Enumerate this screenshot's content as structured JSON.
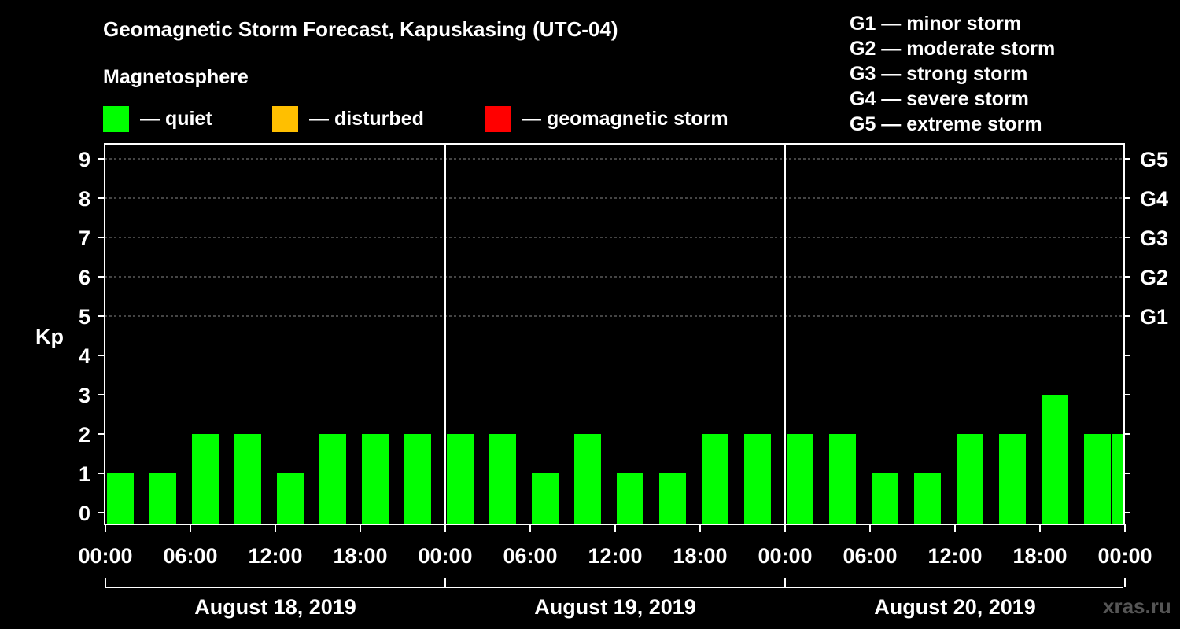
{
  "title": "Geomagnetic Storm Forecast, Kapuskasing (UTC-04)",
  "legend": {
    "heading": "Magnetosphere",
    "items": [
      {
        "label": "— quiet",
        "color": "#00ff00"
      },
      {
        "label": "— disturbed",
        "color": "#ffbf00"
      },
      {
        "label": "— geomagnetic storm",
        "color": "#ff0000"
      }
    ]
  },
  "g_scale": [
    "G1 — minor storm",
    "G2 — moderate storm",
    "G3 — strong storm",
    "G4 — severe storm",
    "G5 — extreme storm"
  ],
  "watermark": "xras.ru",
  "chart_data": {
    "type": "bar",
    "title": "Geomagnetic Storm Forecast, Kapuskasing (UTC-04)",
    "ylabel": "Kp",
    "ylim": [
      0,
      9
    ],
    "yticks": [
      "0",
      "1",
      "2",
      "3",
      "4",
      "5",
      "6",
      "7",
      "8",
      "9"
    ],
    "right_ticks": [
      {
        "kp": 5,
        "label": "G1"
      },
      {
        "kp": 6,
        "label": "G2"
      },
      {
        "kp": 7,
        "label": "G3"
      },
      {
        "kp": 8,
        "label": "G4"
      },
      {
        "kp": 9,
        "label": "G5"
      }
    ],
    "xlim_hours": [
      0,
      72
    ],
    "bar_start_hours": [
      0,
      3,
      6,
      9,
      12,
      15,
      18,
      21,
      24,
      27,
      30,
      33,
      36,
      39,
      42,
      45,
      48,
      51,
      54,
      57,
      60,
      63,
      66,
      69,
      71
    ],
    "bar_end_hours": [
      2,
      5,
      8,
      11,
      14,
      17,
      20,
      23,
      26,
      29,
      32,
      35,
      38,
      41,
      44,
      47,
      50,
      53,
      56,
      59,
      62,
      65,
      68,
      71,
      72
    ],
    "values": [
      1,
      1,
      2,
      2,
      1,
      2,
      2,
      2,
      2,
      2,
      1,
      2,
      1,
      1,
      2,
      2,
      2,
      2,
      1,
      1,
      2,
      2,
      3,
      2,
      2
    ],
    "bar_color": "#00ff00",
    "xtick_hours": [
      0,
      6,
      12,
      18,
      24,
      30,
      36,
      42,
      48,
      54,
      60,
      66,
      72
    ],
    "xtick_labels": [
      "00:00",
      "06:00",
      "12:00",
      "18:00",
      "00:00",
      "06:00",
      "12:00",
      "18:00",
      "00:00",
      "06:00",
      "12:00",
      "18:00",
      "00:00"
    ],
    "day_separators_hours": [
      24,
      48
    ],
    "days": [
      "August 18, 2019",
      "August 19, 2019",
      "August 20, 2019"
    ],
    "gridlines_kp": [
      5,
      6,
      7,
      8,
      9
    ]
  }
}
